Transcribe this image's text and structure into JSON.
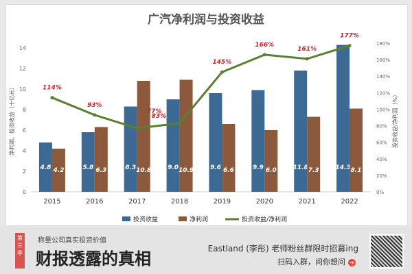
{
  "chart_data": {
    "type": "bar",
    "title": "广汽净利润与投资收益",
    "categories": [
      "2015",
      "2016",
      "2017",
      "2018",
      "2019",
      "2020",
      "2021",
      "2022"
    ],
    "series": [
      {
        "name": "投资收益",
        "type": "bar",
        "axis": "left",
        "color": "#3d6a94",
        "values": [
          4.8,
          5.8,
          8.3,
          9.0,
          9.6,
          9.9,
          11.8,
          14.3
        ]
      },
      {
        "name": "净利润",
        "type": "bar",
        "axis": "left",
        "color": "#8b5a3c",
        "values": [
          4.2,
          6.3,
          10.8,
          10.9,
          6.6,
          6.0,
          7.3,
          8.1
        ]
      },
      {
        "name": "投资收益/净利润",
        "type": "line",
        "axis": "right",
        "color": "#5a7f2e",
        "values": [
          114,
          93,
          77,
          83,
          145,
          166,
          161,
          177
        ],
        "labels": [
          "114%",
          "93%",
          "77%",
          "83%",
          "145%",
          "166%",
          "161%",
          "177%"
        ]
      }
    ],
    "ylabel": "净利润、投资收益（十亿元）",
    "y2label": "投资收益/净利润（%）",
    "ylim": [
      0,
      14
    ],
    "y2lim": [
      0,
      180
    ],
    "yticks": [
      "0",
      "2",
      "4",
      "6",
      "8",
      "10",
      "12",
      "14"
    ],
    "y2ticks": [
      "0%",
      "20%",
      "40%",
      "60%",
      "80%",
      "100%",
      "120%",
      "140%",
      "160%",
      "180%"
    ],
    "legend_position": "bottom"
  },
  "banner": {
    "ribbon": "第三季",
    "subtitle": "称量公司真实投资价值",
    "title": "财报透露的真相",
    "promo": "Eastland (李彤) 老师粉丝群限时招募ing",
    "cta": "扫码入群，问你想问"
  }
}
